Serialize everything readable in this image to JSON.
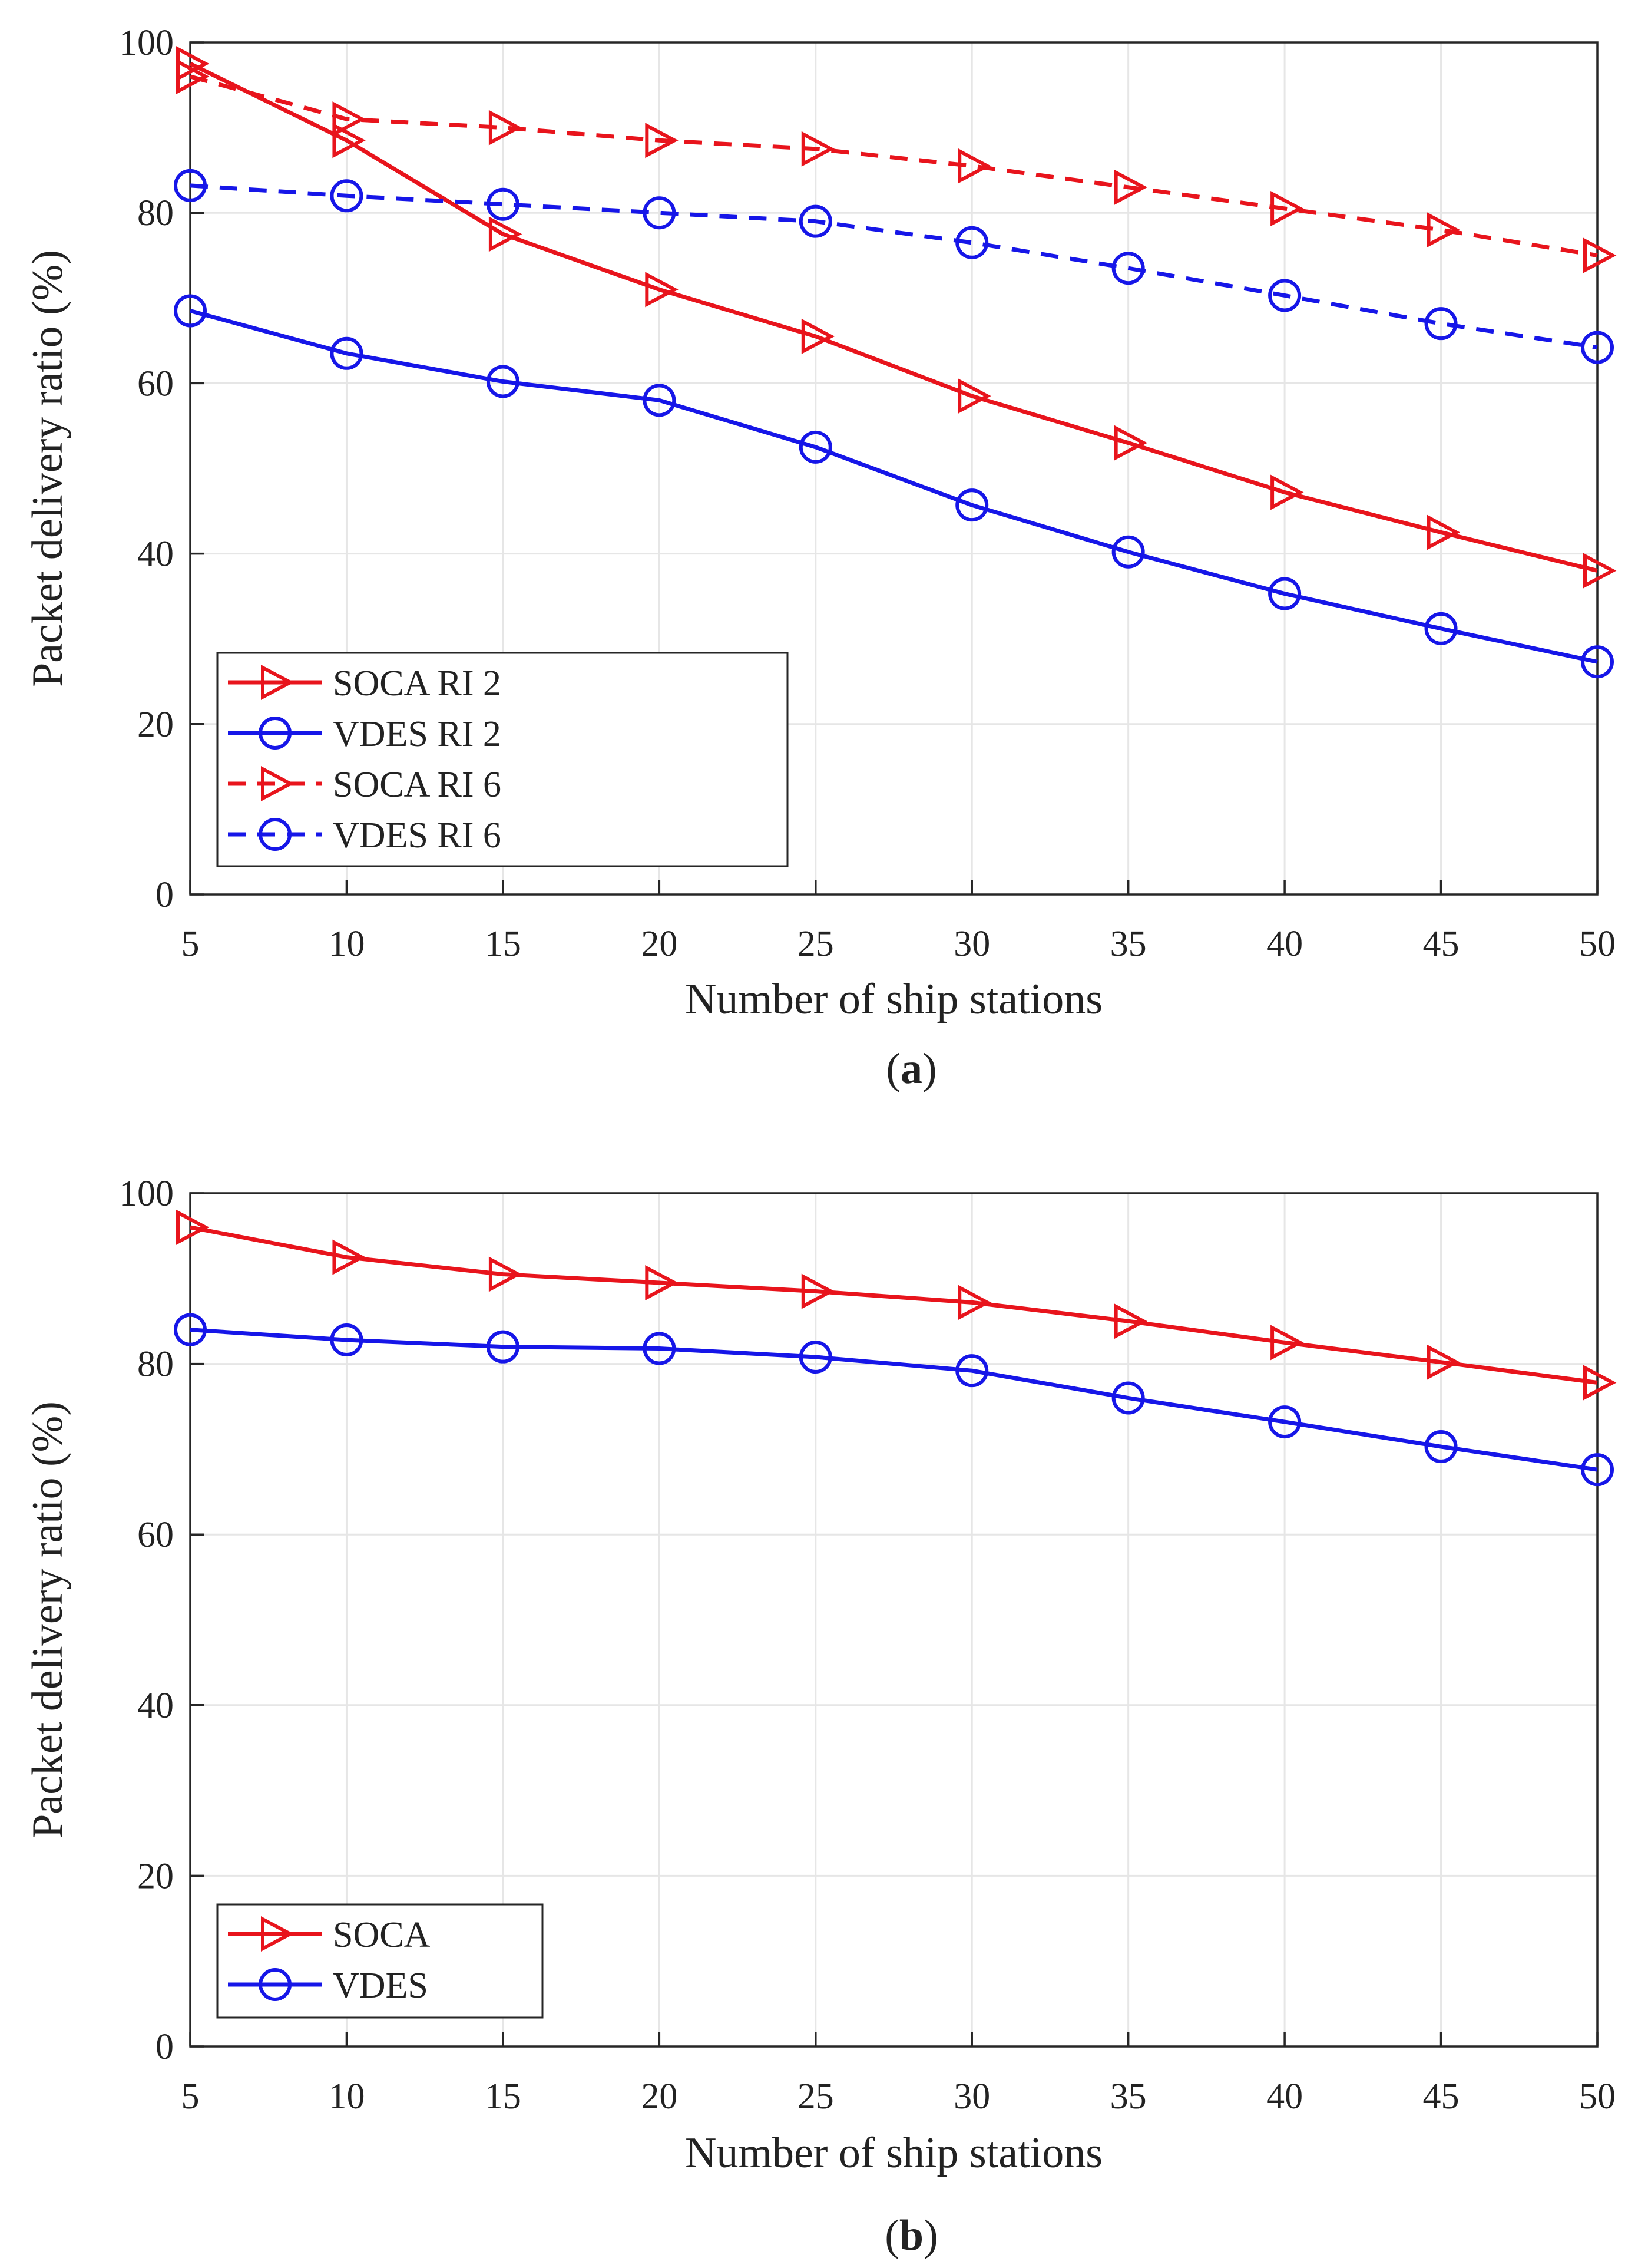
{
  "chart_data": [
    {
      "type": "line",
      "panel_label": "a",
      "xlabel": "Number of ship stations",
      "ylabel": "Packet delivery ratio (%)",
      "x": [
        5,
        10,
        15,
        20,
        25,
        30,
        35,
        40,
        45,
        50
      ],
      "xlim": [
        5,
        50
      ],
      "ylim": [
        0,
        100
      ],
      "xticks": [
        "5",
        "10",
        "15",
        "20",
        "25",
        "30",
        "35",
        "40",
        "45",
        "50"
      ],
      "yticks": [
        "0",
        "20",
        "40",
        "60",
        "80",
        "100"
      ],
      "grid": true,
      "legend_position": "bottom-left",
      "series": [
        {
          "name": "SOCA RI 2",
          "values": [
            97.5,
            88.5,
            77.5,
            71,
            65.5,
            58.5,
            53,
            47.2,
            42.5,
            38
          ],
          "color": "#e8141c",
          "dash": false,
          "marker": "triangle-right"
        },
        {
          "name": "VDES RI 2",
          "values": [
            68.5,
            63.5,
            60.2,
            58,
            52.5,
            45.7,
            40.2,
            35.3,
            31.2,
            27.3
          ],
          "color": "#1616e8",
          "dash": false,
          "marker": "circle"
        },
        {
          "name": "SOCA RI 6",
          "values": [
            96,
            91,
            90,
            88.5,
            87.5,
            85.5,
            83,
            80.5,
            78,
            75
          ],
          "color": "#e8141c",
          "dash": true,
          "marker": "triangle-right"
        },
        {
          "name": "VDES RI 6",
          "values": [
            83.2,
            82,
            81,
            80,
            79,
            76.5,
            73.5,
            70.3,
            67,
            64.2
          ],
          "color": "#1616e8",
          "dash": true,
          "marker": "circle"
        }
      ]
    },
    {
      "type": "line",
      "panel_label": "b",
      "xlabel": "Number of ship stations",
      "ylabel": "Packet delivery ratio (%)",
      "x": [
        5,
        10,
        15,
        20,
        25,
        30,
        35,
        40,
        45,
        50
      ],
      "xlim": [
        5,
        50
      ],
      "ylim": [
        0,
        100
      ],
      "xticks": [
        "5",
        "10",
        "15",
        "20",
        "25",
        "30",
        "35",
        "40",
        "45",
        "50"
      ],
      "yticks": [
        "0",
        "20",
        "40",
        "60",
        "80",
        "100"
      ],
      "grid": true,
      "legend_position": "bottom-left",
      "series": [
        {
          "name": "SOCA",
          "values": [
            96,
            92.5,
            90.5,
            89.5,
            88.5,
            87.2,
            85,
            82.5,
            80.2,
            77.8
          ],
          "color": "#e8141c",
          "dash": false,
          "marker": "triangle-right"
        },
        {
          "name": "VDES",
          "values": [
            84,
            82.8,
            82,
            81.8,
            80.8,
            79.2,
            76,
            73.2,
            70.3,
            67.6
          ],
          "color": "#1616e8",
          "dash": false,
          "marker": "circle"
        }
      ]
    }
  ]
}
